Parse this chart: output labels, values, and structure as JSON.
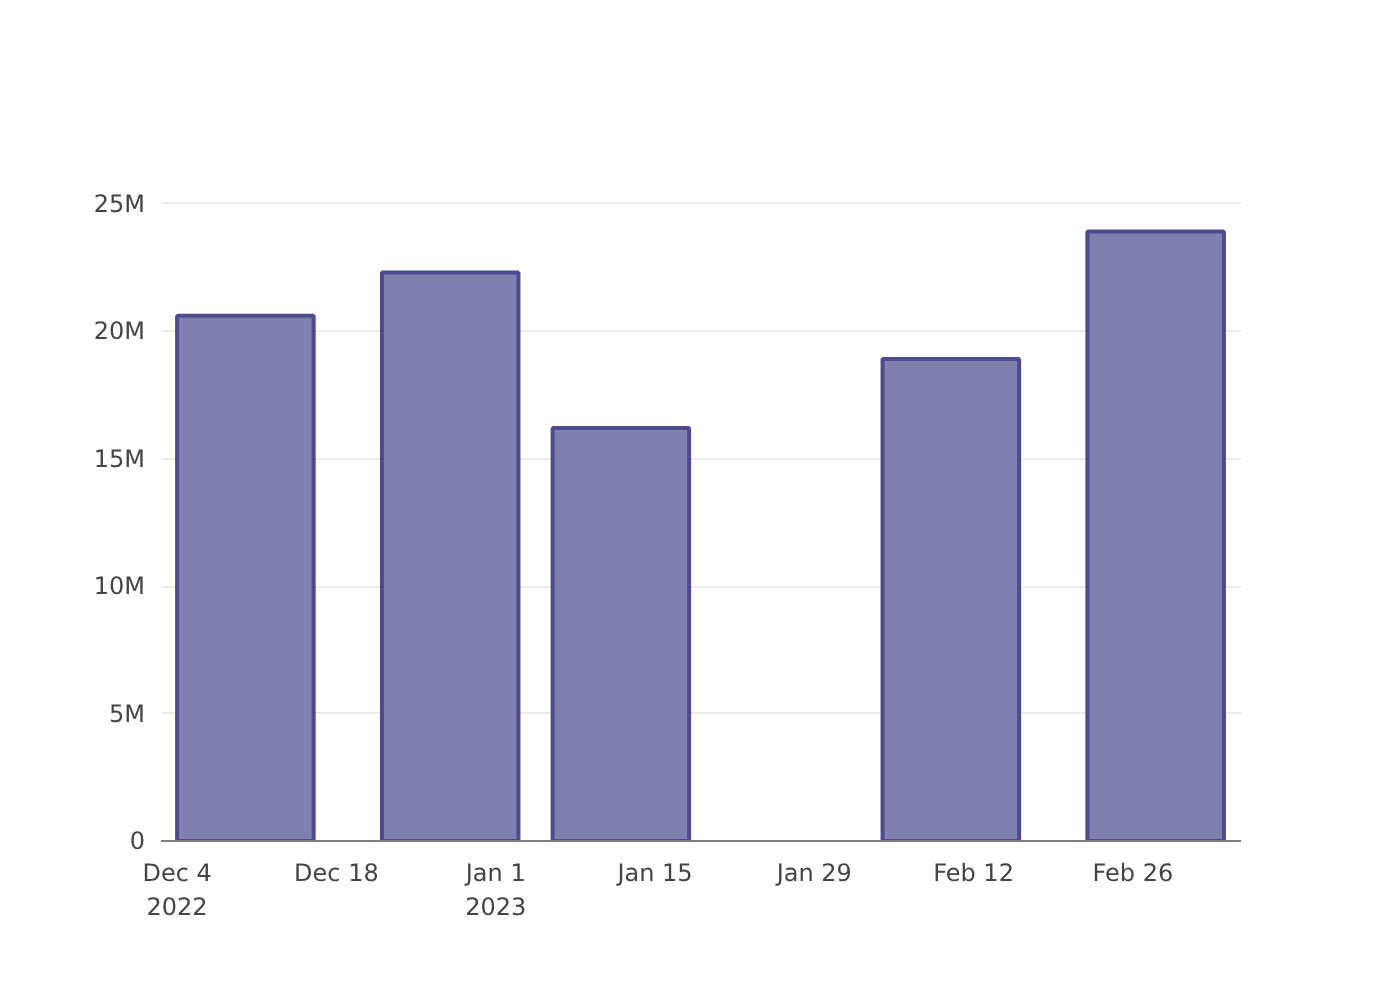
{
  "chart_data": {
    "type": "bar",
    "x": [
      "2022-12-10",
      "2022-12-28",
      "2023-01-12",
      "2023-02-10",
      "2023-02-28"
    ],
    "values": [
      20600000,
      22300000,
      16200000,
      18900000,
      23900000
    ],
    "color": "#8080b0",
    "xlim": [
      "2022-12-02T14:00",
      "2023-03-07T12:00"
    ],
    "xticks": [
      {
        "value": "2022-12-04",
        "label": "Dec 4\n2022"
      },
      {
        "value": "2022-12-18",
        "label": "Dec 18"
      },
      {
        "value": "2023-01-01",
        "label": "Jan 1\n2023"
      },
      {
        "value": "2023-01-15",
        "label": "Jan 15"
      },
      {
        "value": "2023-01-29",
        "label": "Jan 29"
      },
      {
        "value": "2023-02-12",
        "label": "Feb 12"
      },
      {
        "value": "2023-02-26",
        "label": "Feb 26"
      }
    ],
    "ylim": [
      0,
      25100000
    ],
    "yticks": [
      0,
      {
        "value": 5000000,
        "label": "5M"
      },
      {
        "value": 10000000,
        "label": "10M"
      },
      {
        "value": 15000000,
        "label": "15M"
      },
      {
        "value": 20000000,
        "label": "20M"
      },
      {
        "value": 25000000,
        "label": "25M"
      }
    ],
    "grid": "y"
  }
}
